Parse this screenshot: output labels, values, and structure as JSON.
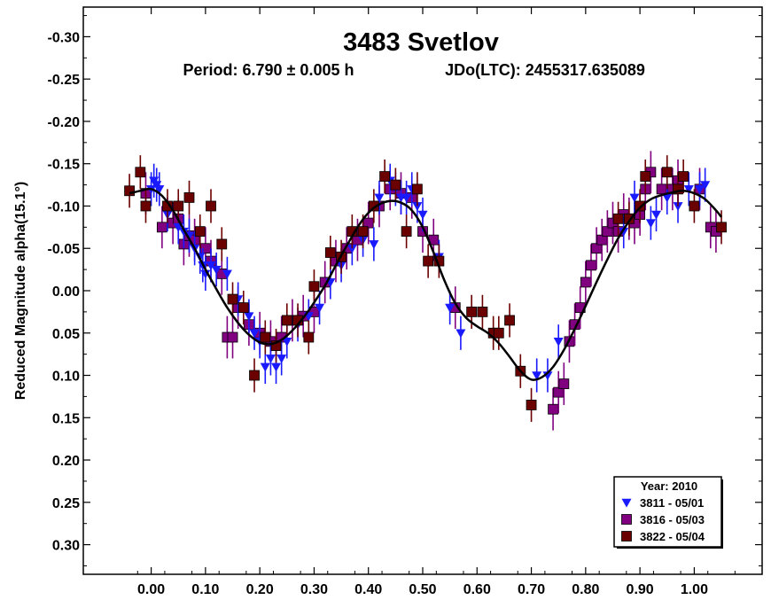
{
  "chart_data": {
    "type": "scatter",
    "title": "3483 Svetlov",
    "subtitle_period": "Period: 6.790 ± 0.005 h",
    "subtitle_epoch": "JDo(LTC): 2455317.635089",
    "xlabel": "",
    "ylabel": "Reduced Magnitude alpha(15.1°)",
    "xlim": [
      -0.125,
      1.125
    ],
    "ylim": [
      0.335,
      -0.335
    ],
    "y_inverted": true,
    "grid": false,
    "x_ticks": [
      {
        "value": 0.0,
        "label": "0.00"
      },
      {
        "value": 0.1,
        "label": "0.10"
      },
      {
        "value": 0.2,
        "label": "0.20"
      },
      {
        "value": 0.3,
        "label": "0.30"
      },
      {
        "value": 0.4,
        "label": "0.40"
      },
      {
        "value": 0.5,
        "label": "0.50"
      },
      {
        "value": 0.6,
        "label": "0.60"
      },
      {
        "value": 0.7,
        "label": "0.70"
      },
      {
        "value": 0.8,
        "label": "0.80"
      },
      {
        "value": 0.9,
        "label": "0.90"
      },
      {
        "value": 1.0,
        "label": "1.00"
      }
    ],
    "y_ticks": [
      {
        "value": -0.3,
        "label": "-0.30"
      },
      {
        "value": -0.25,
        "label": "-0.25"
      },
      {
        "value": -0.2,
        "label": "-0.20"
      },
      {
        "value": -0.15,
        "label": "-0.15"
      },
      {
        "value": -0.1,
        "label": "-0.10"
      },
      {
        "value": -0.05,
        "label": "-0.05"
      },
      {
        "value": 0.0,
        "label": "0.00"
      },
      {
        "value": 0.05,
        "label": "0.05"
      },
      {
        "value": 0.1,
        "label": "0.10"
      },
      {
        "value": 0.15,
        "label": "0.15"
      },
      {
        "value": 0.2,
        "label": "0.20"
      },
      {
        "value": 0.25,
        "label": "0.25"
      },
      {
        "value": 0.3,
        "label": "0.30"
      }
    ],
    "legend": {
      "title": "Year: 2010",
      "placement": "bottom-right",
      "entries": [
        {
          "series": 0,
          "label": "3811 - 05/01"
        },
        {
          "series": 1,
          "label": "3816 - 05/03"
        },
        {
          "series": 2,
          "label": "3822 - 05/04"
        }
      ]
    },
    "fit_curve": {
      "name": "Fourier fit",
      "color": "#000000",
      "x": [
        -0.04,
        -0.02,
        0.0,
        0.02,
        0.04,
        0.06,
        0.08,
        0.1,
        0.12,
        0.14,
        0.16,
        0.18,
        0.2,
        0.22,
        0.24,
        0.26,
        0.28,
        0.3,
        0.32,
        0.34,
        0.36,
        0.38,
        0.4,
        0.42,
        0.44,
        0.46,
        0.48,
        0.5,
        0.52,
        0.54,
        0.56,
        0.58,
        0.6,
        0.62,
        0.64,
        0.66,
        0.68,
        0.7,
        0.72,
        0.74,
        0.76,
        0.78,
        0.8,
        0.82,
        0.84,
        0.86,
        0.88,
        0.9,
        0.92,
        0.94,
        0.96,
        0.98,
        1.0,
        1.02,
        1.04,
        1.05
      ],
      "y": [
        -0.115,
        -0.118,
        -0.12,
        -0.112,
        -0.095,
        -0.072,
        -0.05,
        -0.025,
        -0.002,
        0.02,
        0.038,
        0.052,
        0.061,
        0.063,
        0.058,
        0.047,
        0.032,
        0.014,
        -0.006,
        -0.03,
        -0.053,
        -0.075,
        -0.092,
        -0.102,
        -0.106,
        -0.104,
        -0.095,
        -0.075,
        -0.045,
        -0.012,
        0.015,
        0.032,
        0.042,
        0.05,
        0.062,
        0.078,
        0.095,
        0.105,
        0.102,
        0.09,
        0.07,
        0.045,
        0.018,
        -0.01,
        -0.037,
        -0.062,
        -0.082,
        -0.098,
        -0.108,
        -0.113,
        -0.116,
        -0.118,
        -0.115,
        -0.108,
        -0.095,
        -0.087
      ]
    },
    "series": [
      {
        "name": "3811 - 05/01",
        "marker": "triangle-down",
        "color": "#1a1aff",
        "x": [
          0.0,
          0.005,
          0.01,
          0.015,
          0.03,
          0.05,
          0.06,
          0.07,
          0.08,
          0.09,
          0.095,
          0.1,
          0.11,
          0.12,
          0.14,
          0.16,
          0.18,
          0.19,
          0.2,
          0.21,
          0.22,
          0.23,
          0.24,
          0.25,
          0.27,
          0.29,
          0.31,
          0.33,
          0.35,
          0.37,
          0.39,
          0.41,
          0.42,
          0.44,
          0.45,
          0.46,
          0.47,
          0.48,
          0.49,
          0.5,
          0.53,
          0.55,
          0.57,
          0.71,
          0.73,
          0.75,
          0.87,
          0.89,
          0.92,
          0.93,
          0.95,
          0.97,
          0.99,
          1.01,
          1.02
        ],
        "y": [
          -0.12,
          -0.13,
          -0.125,
          -0.12,
          -0.09,
          -0.075,
          -0.07,
          -0.065,
          -0.05,
          -0.04,
          -0.03,
          -0.02,
          -0.03,
          -0.025,
          -0.02,
          0.01,
          0.03,
          0.05,
          0.06,
          0.09,
          0.08,
          0.09,
          0.08,
          0.06,
          0.04,
          0.03,
          0.02,
          -0.01,
          -0.03,
          -0.05,
          -0.06,
          -0.055,
          -0.11,
          -0.13,
          -0.12,
          -0.11,
          -0.11,
          -0.12,
          -0.1,
          -0.09,
          -0.04,
          0.02,
          0.05,
          0.1,
          0.1,
          0.06,
          -0.07,
          -0.11,
          -0.08,
          -0.09,
          -0.11,
          -0.1,
          -0.12,
          -0.12,
          -0.125
        ],
        "err": [
          0.02,
          0.02,
          0.02,
          0.02,
          0.02,
          0.02,
          0.02,
          0.02,
          0.02,
          0.02,
          0.02,
          0.02,
          0.02,
          0.02,
          0.02,
          0.02,
          0.02,
          0.02,
          0.02,
          0.02,
          0.02,
          0.02,
          0.02,
          0.02,
          0.02,
          0.02,
          0.02,
          0.02,
          0.02,
          0.02,
          0.02,
          0.02,
          0.02,
          0.02,
          0.02,
          0.02,
          0.02,
          0.02,
          0.02,
          0.02,
          0.02,
          0.02,
          0.02,
          0.02,
          0.02,
          0.02,
          0.02,
          0.02,
          0.02,
          0.02,
          0.02,
          0.02,
          0.02,
          0.02,
          0.02
        ]
      },
      {
        "name": "3816 - 05/03",
        "marker": "square",
        "color": "#800080",
        "x": [
          -0.01,
          0.02,
          0.04,
          0.05,
          0.06,
          0.07,
          0.08,
          0.1,
          0.11,
          0.13,
          0.14,
          0.15,
          0.16,
          0.18,
          0.2,
          0.22,
          0.24,
          0.26,
          0.28,
          0.3,
          0.32,
          0.34,
          0.36,
          0.38,
          0.4,
          0.42,
          0.44,
          0.46,
          0.48,
          0.5,
          0.52,
          0.56,
          0.74,
          0.75,
          0.76,
          0.77,
          0.78,
          0.79,
          0.8,
          0.81,
          0.82,
          0.83,
          0.84,
          0.85,
          0.86,
          0.87,
          0.88,
          0.89,
          0.9,
          0.91,
          0.92,
          0.94,
          0.96,
          0.97,
          1.01,
          1.03,
          1.04
        ],
        "y": [
          -0.115,
          -0.075,
          -0.08,
          -0.085,
          -0.055,
          -0.065,
          -0.06,
          -0.05,
          -0.035,
          -0.02,
          0.055,
          0.055,
          0.02,
          0.04,
          0.05,
          0.06,
          0.055,
          0.035,
          0.03,
          0.025,
          -0.01,
          -0.035,
          -0.05,
          -0.06,
          -0.08,
          -0.1,
          -0.12,
          -0.115,
          -0.11,
          -0.07,
          -0.06,
          0.02,
          0.14,
          0.12,
          0.11,
          0.06,
          0.04,
          0.02,
          -0.01,
          -0.03,
          -0.05,
          -0.06,
          -0.07,
          -0.08,
          -0.07,
          -0.09,
          -0.085,
          -0.08,
          -0.09,
          -0.12,
          -0.14,
          -0.12,
          -0.12,
          -0.13,
          -0.12,
          -0.075,
          -0.07
        ],
        "err": [
          0.025,
          0.025,
          0.025,
          0.025,
          0.025,
          0.025,
          0.025,
          0.025,
          0.025,
          0.025,
          0.025,
          0.025,
          0.025,
          0.025,
          0.025,
          0.025,
          0.025,
          0.025,
          0.025,
          0.025,
          0.025,
          0.025,
          0.025,
          0.025,
          0.025,
          0.025,
          0.025,
          0.025,
          0.025,
          0.025,
          0.025,
          0.025,
          0.025,
          0.025,
          0.025,
          0.025,
          0.025,
          0.025,
          0.025,
          0.025,
          0.025,
          0.025,
          0.025,
          0.025,
          0.025,
          0.025,
          0.025,
          0.025,
          0.025,
          0.025,
          0.025,
          0.025,
          0.025,
          0.025,
          0.025,
          0.025,
          0.025
        ]
      },
      {
        "name": "3822 - 05/04",
        "marker": "square",
        "color": "#6b0000",
        "x": [
          -0.04,
          -0.02,
          -0.01,
          0.03,
          0.05,
          0.07,
          0.09,
          0.11,
          0.13,
          0.15,
          0.17,
          0.19,
          0.21,
          0.23,
          0.25,
          0.27,
          0.29,
          0.3,
          0.33,
          0.35,
          0.37,
          0.39,
          0.41,
          0.43,
          0.45,
          0.47,
          0.49,
          0.51,
          0.53,
          0.59,
          0.61,
          0.63,
          0.64,
          0.66,
          0.68,
          0.7,
          0.86,
          0.88,
          0.9,
          0.91,
          0.95,
          0.97,
          0.98,
          1.0,
          1.05
        ],
        "y": [
          -0.118,
          -0.14,
          -0.1,
          -0.1,
          -0.1,
          -0.11,
          -0.07,
          -0.1,
          -0.055,
          0.01,
          0.02,
          0.1,
          0.055,
          0.065,
          0.035,
          0.035,
          0.055,
          -0.005,
          -0.045,
          -0.04,
          -0.07,
          -0.07,
          -0.1,
          -0.135,
          -0.125,
          -0.07,
          -0.12,
          -0.035,
          -0.035,
          0.025,
          0.025,
          0.05,
          0.05,
          0.035,
          0.095,
          0.135,
          -0.085,
          -0.085,
          -0.1,
          -0.135,
          -0.14,
          -0.12,
          -0.135,
          -0.1,
          -0.075
        ],
        "err": [
          0.02,
          0.02,
          0.02,
          0.02,
          0.02,
          0.02,
          0.02,
          0.02,
          0.02,
          0.02,
          0.02,
          0.02,
          0.02,
          0.02,
          0.02,
          0.02,
          0.02,
          0.02,
          0.02,
          0.02,
          0.02,
          0.02,
          0.02,
          0.02,
          0.02,
          0.02,
          0.02,
          0.02,
          0.02,
          0.02,
          0.02,
          0.02,
          0.02,
          0.02,
          0.02,
          0.02,
          0.02,
          0.02,
          0.02,
          0.02,
          0.02,
          0.02,
          0.02,
          0.02,
          0.02
        ]
      }
    ]
  }
}
